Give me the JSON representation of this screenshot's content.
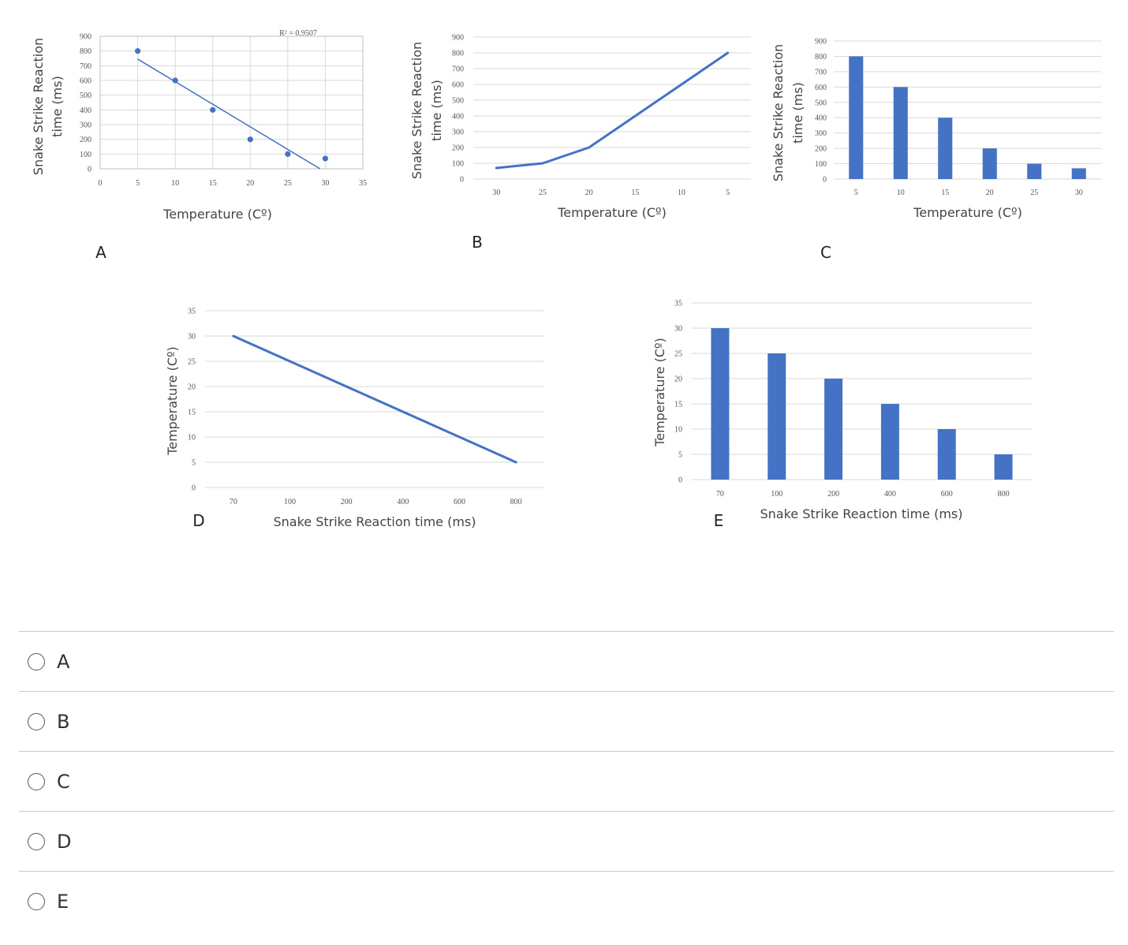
{
  "chart_data": [
    {
      "id": "A",
      "type": "scatter",
      "panel_label": "A",
      "annotation": "R² = 0.9507",
      "trendline": "linear",
      "xlabel": "Temperature (Cº)",
      "ylabel": "Snake Strike Reaction time (ms)",
      "ylabel_lines": [
        "Snake Strike Reaction",
        "time (ms)"
      ],
      "xlim": [
        0,
        35
      ],
      "ylim": [
        0,
        900
      ],
      "x_ticks": [
        0,
        5,
        10,
        15,
        20,
        25,
        30,
        35
      ],
      "y_ticks": [
        0,
        100,
        200,
        300,
        400,
        500,
        600,
        700,
        800,
        900
      ],
      "grid": true,
      "x": [
        5,
        10,
        15,
        20,
        25,
        30
      ],
      "y": [
        800,
        600,
        400,
        200,
        100,
        70
      ],
      "trend_start": [
        5,
        745
      ],
      "trend_end": [
        29.3,
        0
      ],
      "point_color": "#4472c4"
    },
    {
      "id": "B",
      "type": "line",
      "panel_label": "B",
      "xlabel": "Temperature (Cº)",
      "ylabel": "Snake Strike Reaction time (ms)",
      "ylabel_lines": [
        "Snake Strike Reaction",
        "time (ms)"
      ],
      "categories": [
        "30",
        "25",
        "20",
        "15",
        "10",
        "5"
      ],
      "values": [
        70,
        100,
        200,
        400,
        600,
        800
      ],
      "ylim": [
        0,
        900
      ],
      "y_ticks": [
        0,
        100,
        200,
        300,
        400,
        500,
        600,
        700,
        800,
        900
      ],
      "grid": true,
      "color": "#4472c4"
    },
    {
      "id": "C",
      "type": "bar",
      "panel_label": "C",
      "xlabel": "Temperature (Cº)",
      "ylabel": "Snake Strike Reaction time (ms)",
      "ylabel_lines": [
        "Snake Strike Reaction",
        "time (ms)"
      ],
      "categories": [
        "5",
        "10",
        "15",
        "20",
        "25",
        "30"
      ],
      "values": [
        800,
        600,
        400,
        200,
        100,
        70
      ],
      "ylim": [
        0,
        900
      ],
      "y_ticks": [
        0,
        100,
        200,
        300,
        400,
        500,
        600,
        700,
        800,
        900
      ],
      "grid": true,
      "color": "#4472c4"
    },
    {
      "id": "D",
      "type": "line",
      "panel_label": "D",
      "xlabel": "Snake Strike Reaction time (ms)",
      "ylabel": "Temperature (Cº)",
      "ylabel_lines": [
        "Temperature (Cº)"
      ],
      "categories": [
        "70",
        "100",
        "200",
        "400",
        "600",
        "800"
      ],
      "values": [
        30,
        25,
        20,
        15,
        10,
        5
      ],
      "ylim": [
        0,
        35
      ],
      "y_ticks": [
        0,
        5,
        10,
        15,
        20,
        25,
        30,
        35
      ],
      "grid": true,
      "color": "#4472c4"
    },
    {
      "id": "E",
      "type": "bar",
      "panel_label": "E",
      "xlabel": "Snake Strike Reaction time (ms)",
      "ylabel": "Temperature (Cº)",
      "ylabel_lines": [
        "Temperature (Cº)"
      ],
      "categories": [
        "70",
        "100",
        "200",
        "400",
        "600",
        "800"
      ],
      "values": [
        30,
        25,
        20,
        15,
        10,
        5
      ],
      "ylim": [
        0,
        35
      ],
      "y_ticks": [
        0,
        5,
        10,
        15,
        20,
        25,
        30,
        35
      ],
      "grid": true,
      "color": "#4472c4"
    }
  ],
  "options": [
    "A",
    "B",
    "C",
    "D",
    "E"
  ]
}
